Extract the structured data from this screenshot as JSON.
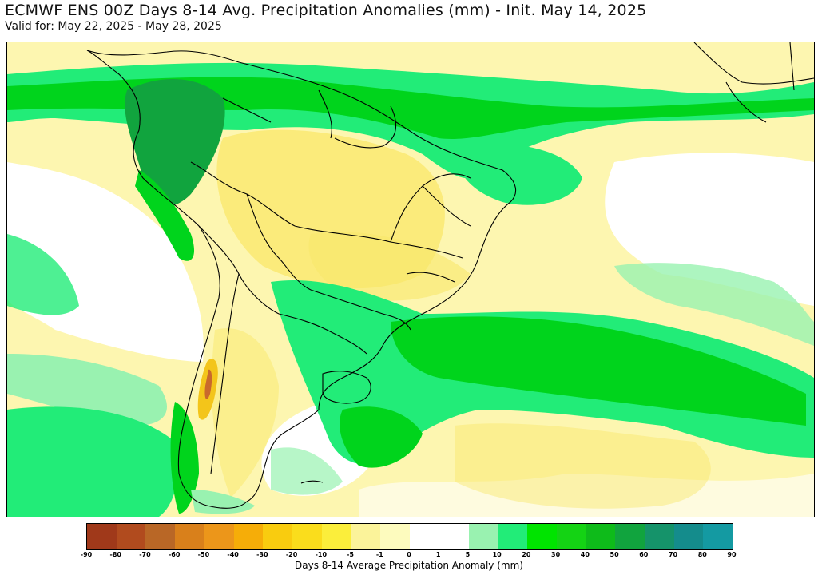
{
  "header": {
    "title": "ECMWF ENS 00Z Days 8-14 Avg. Precipitation Anomalies (mm) - Init. May 14, 2025",
    "valid": "Valid for: May 22, 2025 - May 28, 2025"
  },
  "legend": {
    "label": "Days 8-14 Average Precipitation Anomaly (mm)",
    "ticks": [
      "-90",
      "-80",
      "-70",
      "-60",
      "-50",
      "-40",
      "-30",
      "-20",
      "-10",
      "-5",
      "-1",
      "0",
      "1",
      "5",
      "10",
      "20",
      "30",
      "40",
      "50",
      "60",
      "70",
      "80",
      "90"
    ],
    "colors": [
      "#a0391a",
      "#b14b1e",
      "#b96726",
      "#d9801b",
      "#ec961a",
      "#f6ad08",
      "#f9cc0f",
      "#fadd1c",
      "#fbee3b",
      "#fbf39a",
      "#fdfbbe",
      "#ffffff",
      "#ffffff",
      "#99f2b0",
      "#22ec78",
      "#00e400",
      "#14d314",
      "#0ebb1a",
      "#11a43e",
      "#15936a",
      "#148c8c",
      "#149aa2",
      "#18a9bc"
    ]
  },
  "map": {
    "region": "South America",
    "colors": {
      "dry_light": "#fdf6b0",
      "dry_mid": "#f9e76a",
      "dry_strong": "#f3c51a",
      "dry_extreme": "#c9692c",
      "wet_light": "#99f2b0",
      "wet_mid": "#22ec78",
      "wet_strong": "#00d41c",
      "wet_deep": "#11a43e",
      "wet_extreme": "#148c8c",
      "border": "#000000"
    }
  }
}
